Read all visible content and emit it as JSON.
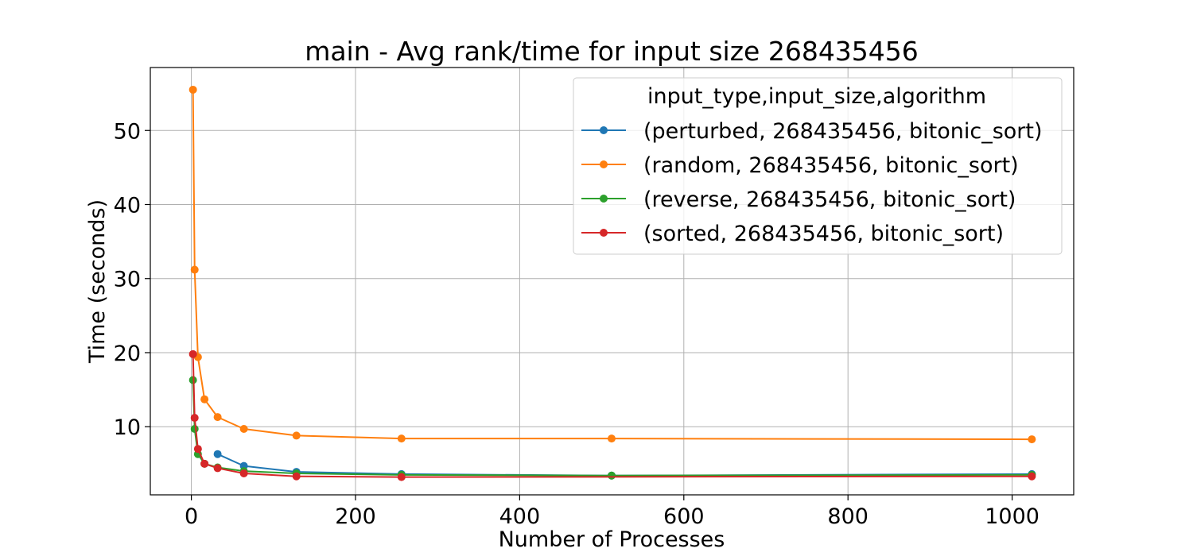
{
  "chart_data": {
    "type": "line",
    "title": "main - Avg rank/time for input size 268435456",
    "xlabel": "Number of Processes",
    "ylabel": "Time (seconds)",
    "xlim": [
      -50,
      1075
    ],
    "ylim": [
      0.8,
      58.5
    ],
    "xticks": [
      0,
      200,
      400,
      600,
      800,
      1000
    ],
    "yticks": [
      10,
      20,
      30,
      40,
      50
    ],
    "grid": true,
    "legend_title": "input_type,input_size,algorithm",
    "legend_position": "top-right",
    "series": [
      {
        "name": "(perturbed, 268435456, bitonic_sort)",
        "color": "#1f77b4",
        "x": [
          32,
          64,
          128,
          256,
          512,
          1024
        ],
        "y": [
          6.3,
          4.7,
          3.9,
          3.6,
          3.4,
          3.6
        ]
      },
      {
        "name": "(random, 268435456, bitonic_sort)",
        "color": "#ff7f0e",
        "x": [
          2,
          4,
          8,
          16,
          32,
          64,
          128,
          256,
          512,
          1024
        ],
        "y": [
          55.5,
          31.2,
          19.4,
          13.7,
          11.3,
          9.7,
          8.8,
          8.4,
          8.4,
          8.3
        ]
      },
      {
        "name": "(reverse, 268435456, bitonic_sort)",
        "color": "#2ca02c",
        "x": [
          2,
          4,
          8,
          16,
          32,
          64,
          128,
          256,
          512,
          1024
        ],
        "y": [
          16.3,
          9.7,
          6.3,
          5.0,
          4.5,
          4.0,
          3.7,
          3.5,
          3.4,
          3.5
        ]
      },
      {
        "name": "(sorted, 268435456, bitonic_sort)",
        "color": "#d62728",
        "x": [
          2,
          4,
          8,
          16,
          32,
          64,
          128,
          256,
          1024
        ],
        "y": [
          19.8,
          11.2,
          7.0,
          5.0,
          4.4,
          3.7,
          3.3,
          3.2,
          3.3
        ]
      }
    ]
  }
}
